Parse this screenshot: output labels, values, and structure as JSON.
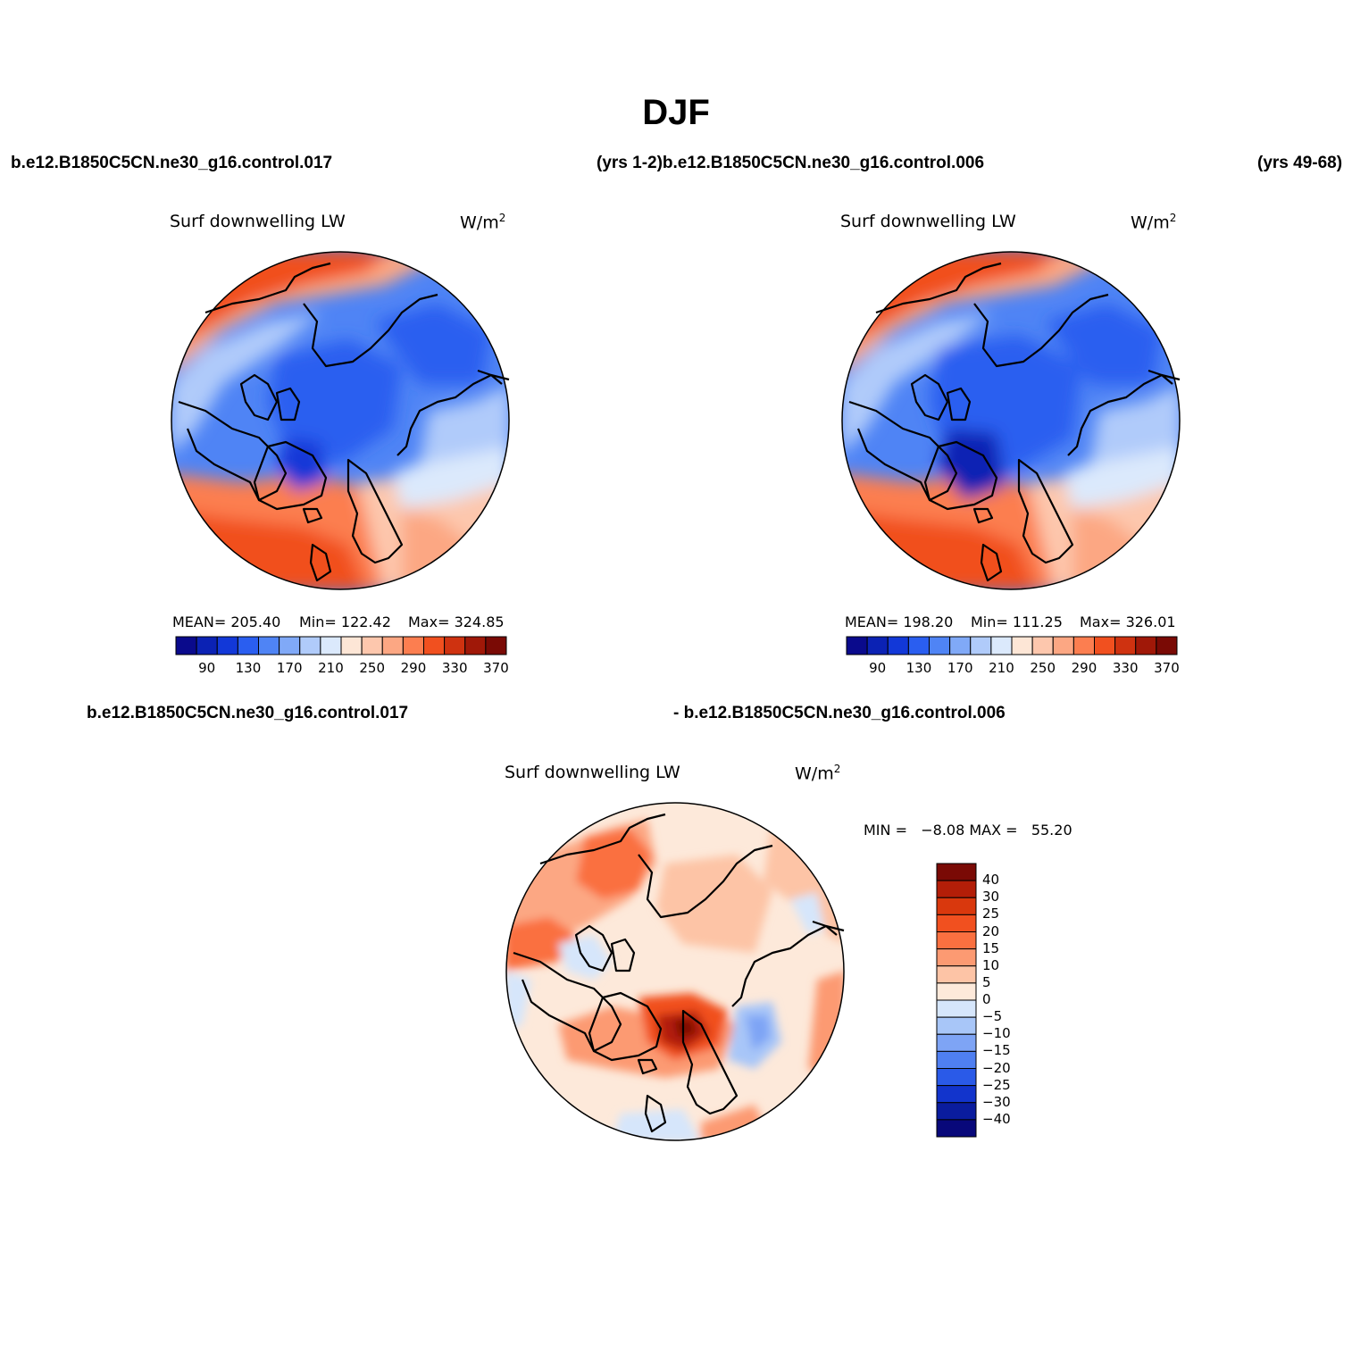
{
  "figure": {
    "title": "DJF"
  },
  "header": {
    "left_case": "b.e12.B1850C5CN.ne30_g16.control.017",
    "mid_label": "(yrs 1-2)b.e12.B1850C5CN.ne30_g16.control.006",
    "right_label": "(yrs 49-68)"
  },
  "panels": [
    {
      "title": "Surf downwelling LW",
      "units": "W/m",
      "units_sup": "2",
      "mean_label": "MEAN= 205.40",
      "min_label": "Min= 122.42",
      "max_label": "Max= 324.85",
      "mean": 205.4,
      "min": 122.42,
      "max": 324.85
    },
    {
      "title": "Surf downwelling LW",
      "units": "W/m",
      "units_sup": "2",
      "mean_label": "MEAN= 198.20",
      "min_label": "Min= 111.25",
      "max_label": "Max= 326.01",
      "mean": 198.2,
      "min": 111.25,
      "max": 326.01
    }
  ],
  "colorbar_abs": {
    "labels": [
      "90",
      "130",
      "170",
      "210",
      "250",
      "290",
      "330",
      "370"
    ],
    "colors": [
      "#0a0a8c",
      "#0b22b4",
      "#1238d8",
      "#2a5ef0",
      "#4f84f5",
      "#80a9f7",
      "#b0cbfa",
      "#dbe9fc",
      "#fde6d6",
      "#fdc7ad",
      "#fca783",
      "#fc7e50",
      "#f1501f",
      "#cf3210",
      "#a01808",
      "#7a0a05"
    ]
  },
  "difference": {
    "label_left": "b.e12.B1850C5CN.ne30_g16.control.017",
    "label_right": "- b.e12.B1850C5CN.ne30_g16.control.006",
    "title": "Surf downwelling LW",
    "units": "W/m",
    "units_sup": "2",
    "minmax_label": "MIN =   −8.08 MAX =   55.20",
    "min": -8.08,
    "max": 55.2
  },
  "colorbar_diff": {
    "labels": [
      "40",
      "30",
      "25",
      "20",
      "15",
      "10",
      "5",
      "0",
      "−5",
      "−10",
      "−15",
      "−20",
      "−25",
      "−30",
      "−40"
    ],
    "colors": [
      "#7a0a05",
      "#b31e08",
      "#d9380d",
      "#f1501f",
      "#fa7040",
      "#fc9a72",
      "#fdc4a6",
      "#fde9da",
      "#d6e6fb",
      "#a8c6f8",
      "#7ea4f5",
      "#4f7ff1",
      "#2a5ae8",
      "#1234cc",
      "#0a1c9e",
      "#08087a"
    ]
  }
}
